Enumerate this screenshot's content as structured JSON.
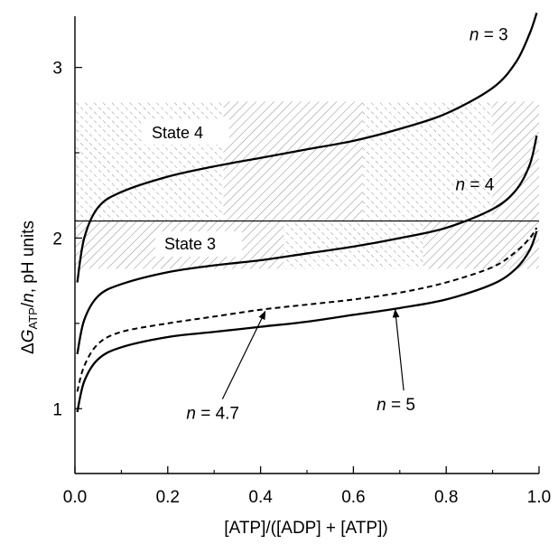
{
  "chart_data": {
    "type": "line",
    "xlabel": "[ATP]/([ADP] + [ATP])",
    "ylabel_parts": {
      "delta": "Δ",
      "g": "G",
      "sub": "ATP",
      "slash": "/",
      "n": "n",
      "rest": ", pH units"
    },
    "xlim": [
      0,
      1.0
    ],
    "ylim": [
      0.62,
      3.3
    ],
    "x_ticks": [
      {
        "value": 0.0,
        "label": "0.0"
      },
      {
        "value": 0.2,
        "label": "0.2"
      },
      {
        "value": 0.4,
        "label": "0.4"
      },
      {
        "value": 0.6,
        "label": "0.6"
      },
      {
        "value": 0.8,
        "label": "0.8"
      },
      {
        "value": 1.0,
        "label": "1.0"
      }
    ],
    "y_ticks": [
      {
        "value": 1,
        "label": "1"
      },
      {
        "value": 2,
        "label": "2"
      },
      {
        "value": 3,
        "label": "3"
      }
    ],
    "threshold_line": 2.1,
    "regions": [
      {
        "name": "State 4",
        "y_range": [
          2.1,
          2.8
        ]
      },
      {
        "name": "State 3",
        "y_range": [
          1.82,
          2.1
        ]
      }
    ],
    "series": [
      {
        "name": "n = 3",
        "style": "solid",
        "x": [
          0.005,
          0.02,
          0.05,
          0.1,
          0.2,
          0.3,
          0.4,
          0.5,
          0.6,
          0.7,
          0.8,
          0.9,
          0.95,
          0.98,
          0.995
        ],
        "y": [
          1.74,
          2.0,
          2.18,
          2.27,
          2.36,
          2.42,
          2.47,
          2.52,
          2.57,
          2.64,
          2.73,
          2.88,
          3.03,
          3.2,
          3.32
        ]
      },
      {
        "name": "n = 4",
        "style": "solid",
        "x": [
          0.005,
          0.02,
          0.05,
          0.1,
          0.2,
          0.3,
          0.4,
          0.5,
          0.6,
          0.7,
          0.8,
          0.9,
          0.95,
          0.98,
          0.995
        ],
        "y": [
          1.32,
          1.52,
          1.66,
          1.73,
          1.8,
          1.84,
          1.87,
          1.91,
          1.95,
          2.0,
          2.06,
          2.17,
          2.28,
          2.43,
          2.6
        ]
      },
      {
        "name": "n = 4.7",
        "style": "dashed",
        "x": [
          0.005,
          0.02,
          0.05,
          0.1,
          0.2,
          0.3,
          0.4,
          0.5,
          0.6,
          0.7,
          0.8,
          0.9,
          0.95,
          0.98,
          0.995
        ],
        "y": [
          1.1,
          1.25,
          1.38,
          1.45,
          1.5,
          1.54,
          1.58,
          1.61,
          1.64,
          1.68,
          1.74,
          1.83,
          1.92,
          2.0,
          2.06
        ]
      },
      {
        "name": "n = 5",
        "style": "solid",
        "x": [
          0.005,
          0.02,
          0.05,
          0.1,
          0.2,
          0.3,
          0.4,
          0.5,
          0.6,
          0.7,
          0.8,
          0.9,
          0.95,
          0.98,
          0.995
        ],
        "y": [
          0.98,
          1.16,
          1.29,
          1.36,
          1.42,
          1.45,
          1.48,
          1.51,
          1.55,
          1.59,
          1.64,
          1.73,
          1.82,
          1.93,
          2.04
        ]
      }
    ],
    "annotations": [
      {
        "text": "n = 3",
        "x": 0.85,
        "y": 3.16
      },
      {
        "text": "n = 4",
        "x": 0.82,
        "y": 2.28
      },
      {
        "text": "n = 4.7",
        "x": 0.24,
        "y": 0.94,
        "arrow_to": [
          0.41,
          1.57
        ]
      },
      {
        "text": "n = 5",
        "x": 0.65,
        "y": 0.99,
        "arrow_to": [
          0.69,
          1.58
        ]
      }
    ]
  }
}
